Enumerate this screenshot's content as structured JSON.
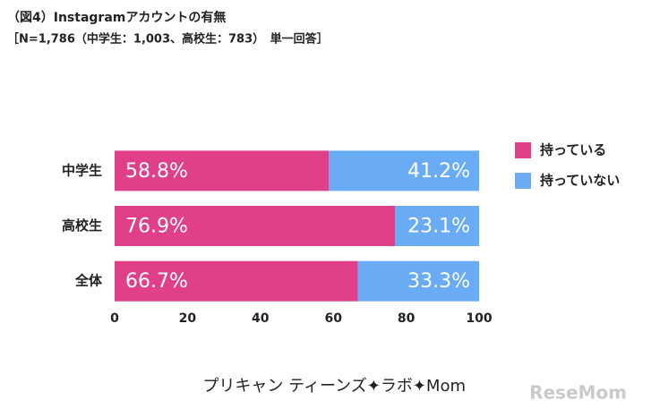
{
  "chart_data": {
    "type": "stacked-barh",
    "title": "（図4）Instagramアカウントの有無",
    "subtitle": "［N=1,786（中学生：1,003、高校生：783）　単一回答］",
    "categories": [
      "中学生",
      "高校生",
      "全体"
    ],
    "series": [
      {
        "name": "持っている",
        "color": "#e0408a",
        "values": [
          58.8,
          76.9,
          66.7
        ],
        "value_labels": [
          "58.8%",
          "76.9%",
          "66.7%"
        ]
      },
      {
        "name": "持っていない",
        "color": "#6aabf5",
        "values": [
          41.2,
          23.1,
          33.3
        ],
        "value_labels": [
          "41.2%",
          "23.1%",
          "33.3%"
        ]
      }
    ],
    "xlim": [
      0,
      100
    ],
    "xticks": [
      0,
      20,
      40,
      60,
      80,
      100
    ],
    "legend": "right",
    "credit": "プリキャン ティーンズ✦ラボ✦Mom",
    "watermark": "ReseMom"
  }
}
